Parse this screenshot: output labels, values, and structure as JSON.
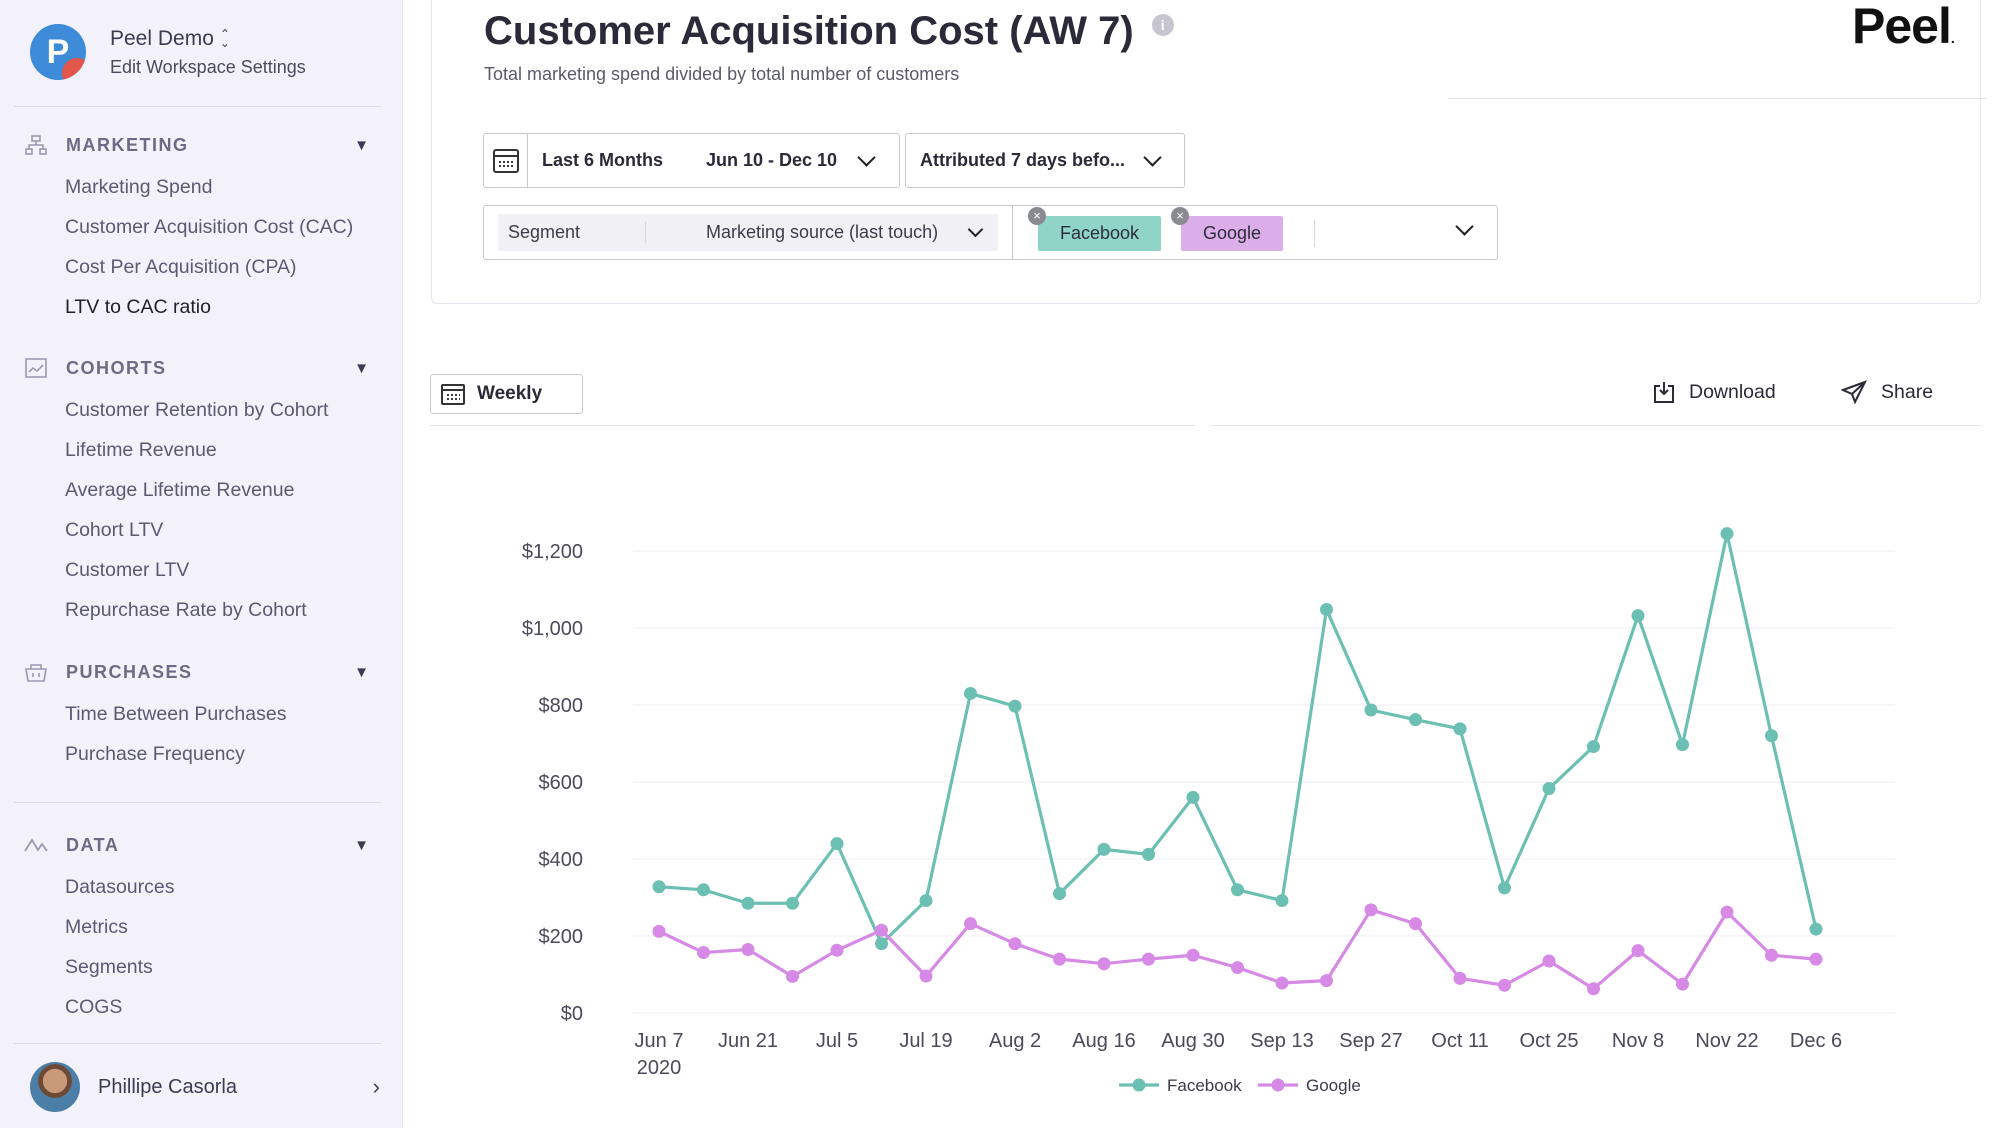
{
  "workspace": {
    "initial": "P",
    "name": "Peel Demo",
    "settings_label": "Edit Workspace Settings"
  },
  "sidebar": {
    "sections": [
      {
        "label": "MARKETING",
        "icon": "hierarchy-icon",
        "items": [
          "Marketing Spend",
          "Customer Acquisition Cost (CAC)",
          "Cost Per Acquisition (CPA)",
          "LTV to CAC ratio"
        ],
        "active": "LTV to CAC ratio"
      },
      {
        "label": "COHORTS",
        "icon": "cohort-chart-icon",
        "items": [
          "Customer Retention by Cohort",
          "Lifetime Revenue",
          "Average Lifetime Revenue",
          "Cohort LTV",
          "Customer LTV",
          "Repurchase Rate by Cohort"
        ]
      },
      {
        "label": "PURCHASES",
        "icon": "basket-icon",
        "items": [
          "Time Between Purchases",
          "Purchase Frequency"
        ]
      },
      {
        "label": "DATA",
        "icon": "line-wave-icon",
        "items": [
          "Datasources",
          "Metrics",
          "Segments",
          "COGS"
        ]
      }
    ]
  },
  "user": {
    "name": "Phillipe Casorla"
  },
  "header": {
    "title": "Customer Acquisition Cost (AW 7)",
    "subtitle": "Total marketing spend divided by total number of customers",
    "brand": "Peel",
    "brand_mark": "."
  },
  "filters": {
    "date_range_label": "Last 6 Months",
    "date_range_dates": "Jun 10 - Dec 10",
    "attribution": "Attributed 7 days befo...",
    "segment_label": "Segment",
    "segment_value": "Marketing source (last touch)",
    "chips": [
      {
        "label": "Facebook",
        "color": "#8fd4c6"
      },
      {
        "label": "Google",
        "color": "#dcaee9"
      }
    ]
  },
  "toolbar": {
    "granularity": "Weekly",
    "download_label": "Download",
    "share_label": "Share"
  },
  "colors": {
    "facebook": "#6cc0b3",
    "google": "#d68ae6",
    "sidebar_bg": "#f3f2fb"
  },
  "chart_data": {
    "type": "line",
    "x": [
      "Jun 7 2020",
      "Jun 14",
      "Jun 21",
      "Jun 28",
      "Jul 5",
      "Jul 12",
      "Jul 19",
      "Jul 26",
      "Aug 2",
      "Aug 9",
      "Aug 16",
      "Aug 23",
      "Aug 30",
      "Sep 6",
      "Sep 13",
      "Sep 20",
      "Sep 27",
      "Oct 4",
      "Oct 11",
      "Oct 18",
      "Oct 25",
      "Nov 1",
      "Nov 8",
      "Nov 15",
      "Nov 22",
      "Nov 29",
      "Dec 6"
    ],
    "x_tick_labels": [
      "Jun 7",
      "Jun 21",
      "Jul 5",
      "Jul 19",
      "Aug 2",
      "Aug 16",
      "Aug 30",
      "Sep 13",
      "Sep 27",
      "Oct 11",
      "Oct 25",
      "Nov 8",
      "Nov 22",
      "Dec 6"
    ],
    "x_year_label": "2020",
    "y_tick_labels": [
      "$0",
      "$200",
      "$400",
      "$600",
      "$800",
      "$1,000",
      "$1,200"
    ],
    "ylim": [
      0,
      1200
    ],
    "series": [
      {
        "name": "Facebook",
        "color": "#6cc0b3",
        "values": [
          328,
          320,
          285,
          285,
          440,
          180,
          292,
          830,
          797,
          310,
          425,
          412,
          560,
          320,
          292,
          1048,
          787,
          762,
          738,
          325,
          583,
          692,
          1032,
          697,
          1245,
          720,
          218
        ]
      },
      {
        "name": "Google",
        "color": "#d68ae6",
        "values": [
          212,
          157,
          165,
          95,
          163,
          215,
          96,
          232,
          180,
          140,
          128,
          140,
          150,
          118,
          78,
          84,
          268,
          232,
          90,
          72,
          135,
          63,
          162,
          75,
          262,
          150,
          140
        ]
      }
    ],
    "legend": [
      "Facebook",
      "Google"
    ],
    "legend_position": "bottom",
    "grid": true
  }
}
